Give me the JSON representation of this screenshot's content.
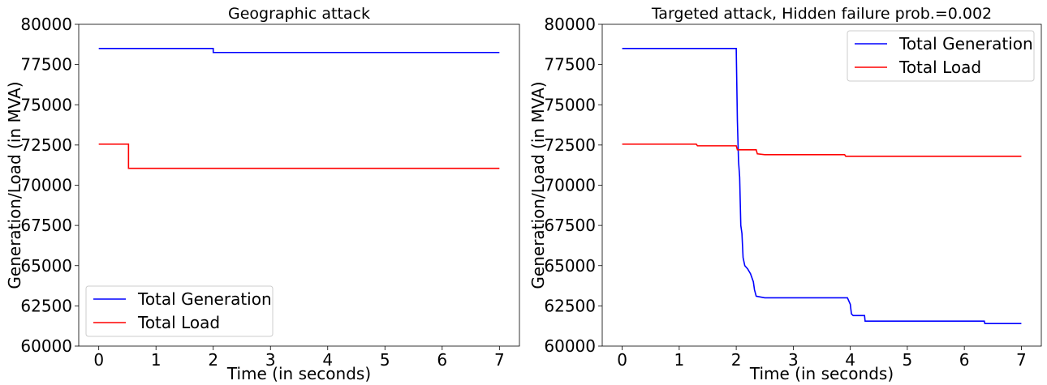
{
  "chart_data": [
    {
      "type": "line",
      "title": "Geographic attack",
      "xlabel": "Time (in seconds)",
      "ylabel": "Generation/Load (in MVA)",
      "xlim": [
        -0.35,
        7.35
      ],
      "ylim": [
        60000,
        80000
      ],
      "xticks": [
        0,
        1,
        2,
        3,
        4,
        5,
        6,
        7
      ],
      "yticks": [
        60000,
        62500,
        65000,
        67500,
        70000,
        72500,
        75000,
        77500,
        80000
      ],
      "legend_position": "lower-left",
      "grid": false,
      "series": [
        {
          "name": "Total Generation",
          "color": "#0000ff",
          "points": [
            [
              0,
              78500
            ],
            [
              2.0,
              78500
            ],
            [
              2.0,
              78250
            ],
            [
              7,
              78250
            ]
          ]
        },
        {
          "name": "Total Load",
          "color": "#ff0000",
          "points": [
            [
              0,
              72550
            ],
            [
              0.52,
              72550
            ],
            [
              0.52,
              71050
            ],
            [
              7,
              71050
            ]
          ]
        }
      ]
    },
    {
      "type": "line",
      "title": "Targeted attack, Hidden failure prob.=0.002",
      "xlabel": "Time (in seconds)",
      "ylabel": "Generation/Load (in MVA)",
      "xlim": [
        -0.35,
        7.35
      ],
      "ylim": [
        60000,
        80000
      ],
      "xticks": [
        0,
        1,
        2,
        3,
        4,
        5,
        6,
        7
      ],
      "yticks": [
        60000,
        62500,
        65000,
        67500,
        70000,
        72500,
        75000,
        77500,
        80000
      ],
      "legend_position": "upper-right",
      "grid": false,
      "series": [
        {
          "name": "Total Generation",
          "color": "#0000ff",
          "points": [
            [
              0,
              78500
            ],
            [
              2.0,
              78500
            ],
            [
              2.02,
              74000
            ],
            [
              2.04,
              71500
            ],
            [
              2.06,
              70500
            ],
            [
              2.08,
              67500
            ],
            [
              2.1,
              67000
            ],
            [
              2.12,
              65500
            ],
            [
              2.15,
              65000
            ],
            [
              2.2,
              64800
            ],
            [
              2.25,
              64500
            ],
            [
              2.3,
              64000
            ],
            [
              2.32,
              63500
            ],
            [
              2.35,
              63100
            ],
            [
              2.5,
              63000
            ],
            [
              3.95,
              63000
            ],
            [
              4.0,
              62600
            ],
            [
              4.02,
              62000
            ],
            [
              4.05,
              61900
            ],
            [
              4.25,
              61900
            ],
            [
              4.26,
              61550
            ],
            [
              6.35,
              61550
            ],
            [
              6.36,
              61400
            ],
            [
              7,
              61400
            ]
          ]
        },
        {
          "name": "Total Load",
          "color": "#ff0000",
          "points": [
            [
              0,
              72550
            ],
            [
              1.3,
              72550
            ],
            [
              1.32,
              72450
            ],
            [
              2.0,
              72450
            ],
            [
              2.02,
              72200
            ],
            [
              2.35,
              72200
            ],
            [
              2.37,
              71950
            ],
            [
              2.5,
              71900
            ],
            [
              3.9,
              71900
            ],
            [
              3.92,
              71800
            ],
            [
              7,
              71800
            ]
          ]
        }
      ]
    }
  ]
}
